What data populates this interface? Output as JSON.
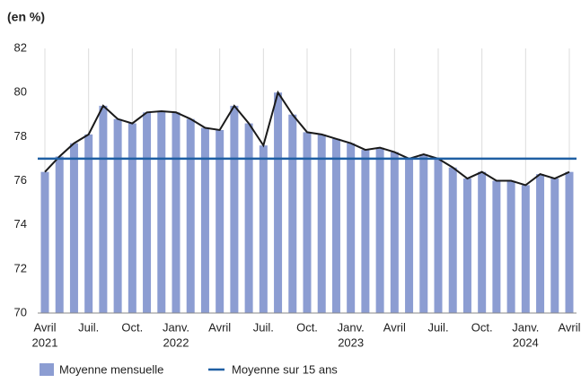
{
  "chart_data": {
    "type": "bar",
    "y_axis_label": "(en %)",
    "categories": [
      "Avril",
      null,
      null,
      "Juil.",
      null,
      null,
      "Oct.",
      null,
      null,
      "Janv.",
      null,
      null,
      "Avril",
      null,
      null,
      "Juil.",
      null,
      null,
      "Oct.",
      null,
      null,
      "Janv.",
      null,
      null,
      "Avril",
      null,
      null,
      "Juil.",
      null,
      null,
      "Oct.",
      null,
      null,
      "Janv.",
      null,
      null,
      "Avril"
    ],
    "category_years": [
      "2021",
      null,
      null,
      null,
      null,
      null,
      null,
      null,
      null,
      "2022",
      null,
      null,
      null,
      null,
      null,
      null,
      null,
      null,
      null,
      null,
      null,
      "2023",
      null,
      null,
      null,
      null,
      null,
      null,
      null,
      null,
      null,
      null,
      null,
      "2024",
      null,
      null,
      null
    ],
    "series": [
      {
        "name": "Moyenne mensuelle",
        "color": "#8c9dd2",
        "line_color": "#1a1a1a",
        "values": [
          76.4,
          77.1,
          77.7,
          78.1,
          79.4,
          78.8,
          78.6,
          79.1,
          79.15,
          79.1,
          78.8,
          78.4,
          78.3,
          79.4,
          78.6,
          77.6,
          80.0,
          79.0,
          78.2,
          78.1,
          77.9,
          77.7,
          77.4,
          77.5,
          77.3,
          77.0,
          77.2,
          77.0,
          76.6,
          76.1,
          76.4,
          76.0,
          76.0,
          75.8,
          76.3,
          76.1,
          76.4
        ]
      },
      {
        "name": "Moyenne sur 15 ans",
        "color": "#1f5fa3",
        "value": 77
      }
    ],
    "ylim": [
      70,
      82
    ],
    "yticks": [
      70,
      72,
      74,
      76,
      78,
      80,
      82
    ],
    "grid": "x"
  }
}
